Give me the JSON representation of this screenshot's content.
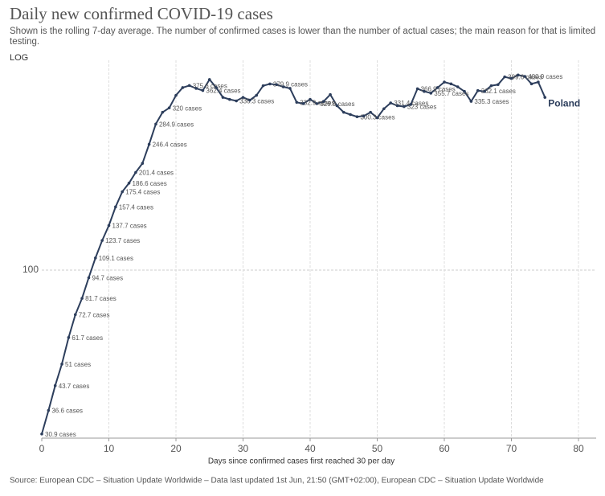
{
  "chart_data": {
    "type": "line",
    "title": "Daily new confirmed COVID-19 cases",
    "subtitle": "Shown is the rolling 7-day average. The number of confirmed cases is lower than the number of actual cases; the main reason for that is limited testing.",
    "scale_toggle": "LOG",
    "x_label": "Days since confirmed cases first reached 30 per day",
    "source": "Source: European CDC – Situation Update Worldwide – Data last updated 1st Jun, 21:50 (GMT+02:00), European CDC – Situation Update Worldwide",
    "log_scale": true,
    "grid": true,
    "xlim": [
      0,
      80
    ],
    "xticks": [
      0,
      10,
      20,
      30,
      40,
      50,
      60,
      70,
      80
    ],
    "ylim": [
      30,
      450
    ],
    "yticks": [
      100
    ],
    "x": [
      0,
      1,
      2,
      3,
      4,
      5,
      6,
      7,
      8,
      9,
      10,
      11,
      12,
      13,
      14,
      15,
      16,
      17,
      18,
      19,
      20,
      21,
      22,
      23,
      24,
      25,
      26,
      27,
      28,
      29,
      30,
      31,
      32,
      33,
      34,
      35,
      36,
      37,
      38,
      39,
      40,
      41,
      42,
      43,
      44,
      45,
      46,
      47,
      48,
      49,
      50,
      51,
      52,
      53,
      54,
      55,
      56,
      57,
      58,
      59,
      60,
      61,
      62,
      63,
      64,
      65,
      66,
      67,
      68,
      69,
      70,
      71,
      72,
      73,
      74,
      75
    ],
    "series": [
      {
        "name": "Poland",
        "color": "#2d3e5c",
        "values": [
          30.9,
          36.6,
          43.7,
          51,
          61.7,
          72.7,
          81.7,
          94.7,
          109.1,
          123.7,
          137.7,
          157.4,
          175.4,
          186.6,
          201.4,
          215,
          246.4,
          284.9,
          310,
          320,
          350,
          370,
          375.6,
          368,
          362.4,
          392,
          370,
          345,
          340,
          336.3,
          345,
          338,
          350,
          375,
          379.9,
          378,
          372,
          368,
          332.9,
          330,
          340,
          329.9,
          335,
          352,
          325,
          310,
          305,
          300.3,
          302,
          310,
          298,
          318,
          331.4,
          325,
          323,
          328,
          366.9,
          360,
          355.7,
          370,
          385,
          380,
          372,
          360,
          335.3,
          362.1,
          360,
          375,
          378,
          399.6,
          395,
          405,
          400.9,
          380,
          385,
          345
        ],
        "value_labels": [
          "30.9 cases",
          "36.6 cases",
          "43.7 cases",
          "51 cases",
          "61.7 cases",
          "72.7 cases",
          "81.7 cases",
          "94.7 cases",
          "109.1 cases",
          "123.7 cases",
          "137.7 cases",
          "157.4 cases",
          "175.4 cases",
          "186.6 cases",
          "201.4 cases",
          null,
          "246.4 cases",
          "284.9 cases",
          null,
          "320 cases",
          null,
          null,
          "375.6 cases",
          null,
          "362.4 cases",
          null,
          null,
          null,
          null,
          "336.3 cases",
          null,
          null,
          null,
          null,
          "379.9 cases",
          null,
          null,
          null,
          "332.9 cases",
          null,
          null,
          "329.9 cases",
          null,
          null,
          null,
          null,
          null,
          "300.3 cases",
          null,
          null,
          null,
          null,
          "331.4 cases",
          null,
          "323 cases",
          null,
          "366.9 cases",
          null,
          "355.7 cases",
          null,
          null,
          null,
          null,
          null,
          "335.3 cases",
          "362.1 cases",
          null,
          null,
          null,
          "399.6 cases",
          null,
          null,
          "400.9 cases",
          null,
          null,
          null
        ]
      }
    ]
  }
}
